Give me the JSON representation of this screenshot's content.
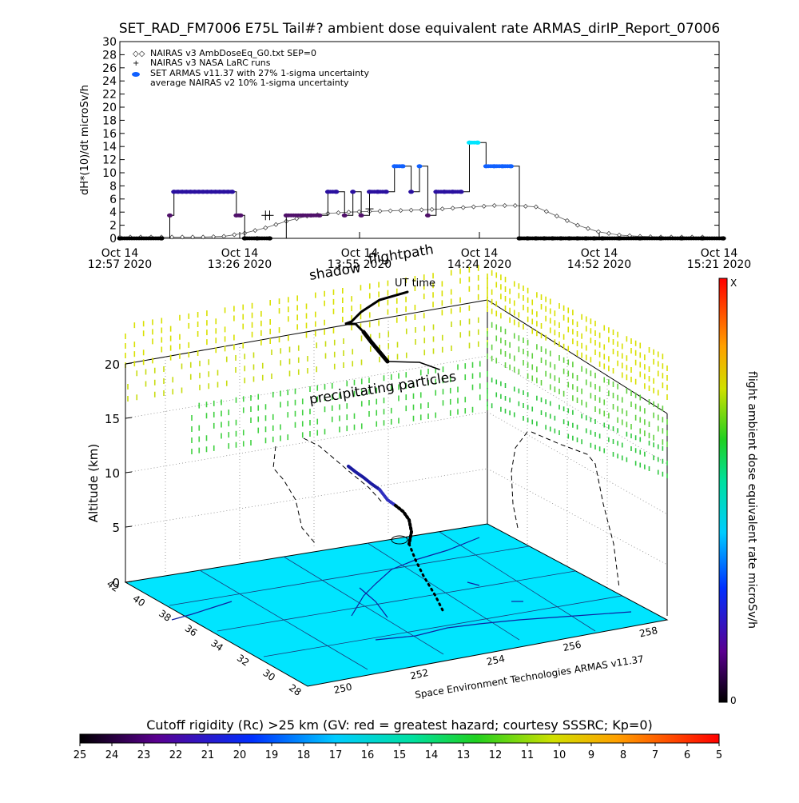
{
  "title": "SET_RAD_FM7006  E75L Tail#? ambient dose equivalent rate ARMAS_dirIP_Report_07006",
  "top_chart": {
    "ylabel": "dH*(10)/dt microSv/h",
    "yticks": [
      "0",
      "2",
      "4",
      "6",
      "8",
      "10",
      "12",
      "14",
      "16",
      "18",
      "20",
      "22",
      "24",
      "26",
      "28",
      "30"
    ],
    "xticks": [
      {
        "line1": "Oct 14",
        "line2": "12:57 2020"
      },
      {
        "line1": "Oct 14",
        "line2": "13:26 2020"
      },
      {
        "line1": "Oct 14",
        "line2": "13:55 2020"
      },
      {
        "line1": "Oct 14",
        "line2": "14:24 2020"
      },
      {
        "line1": "Oct 14",
        "line2": "14:52 2020"
      },
      {
        "line1": "Oct 14",
        "line2": "15:21 2020"
      }
    ],
    "legend": [
      "NAIRAS v3 AmbDoseEq_G0.txt SEP=0",
      "NAIRAS v3 NASA LaRC runs",
      "SET ARMAS v11.37 with 27% 1-sigma uncertainty",
      "average NAIRAS v2 10% 1-sigma uncertainty"
    ]
  },
  "chart_data": {
    "type": "line",
    "x_unit": "minutes after 12:57 UT, Oct 14 2020",
    "xlim": [
      0,
      144
    ],
    "ylim": [
      0,
      30
    ],
    "series": [
      {
        "name": "SET ARMAS v11.37 with 27% 1-sigma uncertainty",
        "x": [
          0,
          10,
          12,
          13,
          14,
          15,
          16,
          17,
          18,
          19,
          20,
          21,
          22,
          23,
          24,
          25,
          26,
          27,
          28,
          29,
          30,
          33,
          36,
          40,
          44,
          46,
          48,
          50,
          52,
          54,
          56,
          58,
          60,
          62,
          64,
          66,
          68,
          70,
          72,
          74,
          76,
          78,
          80,
          82,
          84,
          86,
          88,
          90,
          92,
          94,
          96,
          98,
          100,
          102,
          104,
          106,
          108,
          110,
          112,
          114,
          116,
          120,
          125,
          130,
          135,
          140,
          145
        ],
        "y": [
          0,
          0,
          3.5,
          7.1,
          7.1,
          7.1,
          7.1,
          7.1,
          7.1,
          7.1,
          7.1,
          7.1,
          7.1,
          7.1,
          7.1,
          7.1,
          7.1,
          7.1,
          3.5,
          3.5,
          0,
          0,
          0,
          3.5,
          3.5,
          3.5,
          3.5,
          7.1,
          7.1,
          3.5,
          7.1,
          3.5,
          7.1,
          7.1,
          7.1,
          11,
          11,
          7.1,
          11,
          3.5,
          7.1,
          7.1,
          7.1,
          7.1,
          14.6,
          14.6,
          11,
          11,
          11,
          11,
          0,
          0,
          0,
          0,
          0,
          0,
          0,
          0,
          0,
          0,
          0,
          0,
          0,
          0,
          0,
          0,
          0
        ]
      },
      {
        "name": "NAIRAS v3 AmbDoseEq_G0.txt SEP=0",
        "x": [
          0,
          5,
          10,
          15,
          20,
          25,
          30,
          35,
          40,
          45,
          50,
          55,
          60,
          65,
          70,
          75,
          80,
          85,
          90,
          95,
          100,
          105,
          110,
          115,
          120,
          125,
          130,
          135,
          140
        ],
        "y": [
          0.2,
          0.2,
          0.2,
          0.2,
          0.2,
          0.3,
          0.8,
          1.6,
          2.6,
          3.4,
          3.8,
          4.0,
          4.1,
          4.2,
          4.3,
          4.4,
          4.6,
          4.8,
          5.0,
          5.0,
          4.8,
          3.4,
          2.0,
          1.0,
          0.5,
          0.3,
          0.2,
          0.2,
          0.2
        ]
      }
    ],
    "nasa_points": [
      {
        "x": 35,
        "y": 3.5
      },
      {
        "x": 36,
        "y": 3.5
      },
      {
        "x": 60,
        "y": 4.5
      }
    ]
  },
  "shadow_label": "shadow",
  "flightpath_label": "flightpath",
  "ut_time_label": "UT time",
  "precipitating_label": "precipitating particles",
  "altitude_label": "Altitude (km)",
  "altitude_ticks": [
    "0",
    "5",
    "10",
    "15",
    "20"
  ],
  "lat_ticks": [
    "42",
    "40",
    "38",
    "36",
    "34",
    "32",
    "30",
    "28"
  ],
  "lon_ticks": [
    "250",
    "252",
    "254",
    "256",
    "258"
  ],
  "watermark": "Space Environment Technologies ARMAS v11.37",
  "colorbar_right": {
    "label": "flight ambient dose equivalent rate microSv/h",
    "top": "X",
    "bottom": "0"
  },
  "bottom_colorbar": {
    "title": "Cutoff rigidity (Rc) >25 km (GV: red = greatest hazard; courtesy SSSRC; Kp=0)",
    "ticks": [
      "25",
      "24",
      "23",
      "22",
      "21",
      "20",
      "19",
      "18",
      "17",
      "16",
      "15",
      "14",
      "13",
      "12",
      "11",
      "10",
      "9",
      "8",
      "7",
      "6",
      "5"
    ]
  }
}
